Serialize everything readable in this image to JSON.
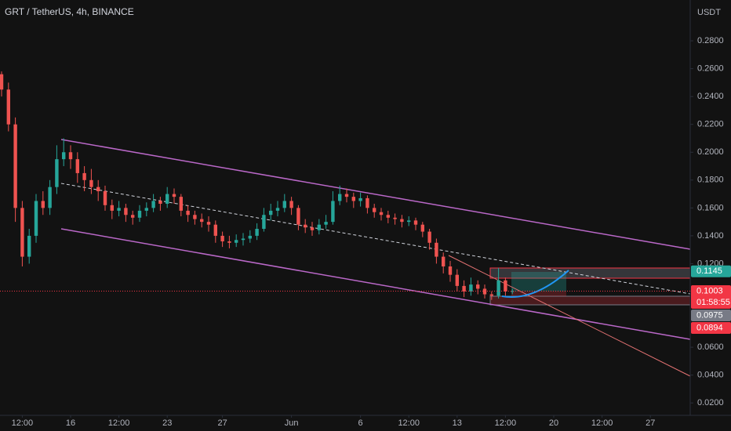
{
  "chart_data": {
    "type": "candlestick",
    "title": "GRT / TetherUS, 4h, BINANCE",
    "axis_unit": "USDT",
    "up_color": "#26a69a",
    "down_color": "#ef5350",
    "xlim": [
      10.886,
      60.886
    ],
    "ylim": [
      0.0111,
      0.3093
    ],
    "xticks": [
      {
        "value": 12.5,
        "label": "12:00"
      },
      16,
      {
        "value": 19.5,
        "label": "12:00"
      },
      23,
      27,
      {
        "value": 32,
        "label": "Jun"
      },
      {
        "value": 37,
        "label": "6"
      },
      {
        "value": 40.5,
        "label": "12:00"
      },
      {
        "value": 44,
        "label": "13"
      },
      {
        "value": 47.5,
        "label": "12:00"
      },
      {
        "value": 51,
        "label": "20"
      },
      {
        "value": 54.5,
        "label": "12:00"
      },
      {
        "value": 58,
        "label": "27"
      }
    ],
    "yticks": [
      {
        "value": 0.02,
        "label": "0.0200"
      },
      {
        "value": 0.04,
        "label": "0.0400"
      },
      {
        "value": 0.06,
        "label": "0.0600"
      },
      {
        "value": 0.12,
        "label": "0.1200"
      },
      {
        "value": 0.14,
        "label": "0.1400"
      },
      {
        "value": 0.16,
        "label": "0.1600"
      },
      {
        "value": 0.18,
        "label": "0.1800"
      },
      {
        "value": 0.2,
        "label": "0.2000"
      },
      {
        "value": 0.22,
        "label": "0.2200"
      },
      {
        "value": 0.24,
        "label": "0.2400"
      },
      {
        "value": 0.26,
        "label": "0.2600"
      },
      {
        "value": 0.28,
        "label": "0.2800"
      }
    ],
    "x": [
      11,
      11.5,
      12,
      12.5,
      13,
      13.5,
      14,
      14.5,
      15,
      15.5,
      16,
      16.5,
      17,
      17.5,
      18,
      18.5,
      19,
      19.5,
      20,
      20.5,
      21,
      21.5,
      22,
      22.5,
      23,
      23.5,
      24,
      24.5,
      25,
      25.5,
      26,
      26.5,
      27,
      27.5,
      28,
      28.5,
      29,
      29.5,
      30,
      30.5,
      31,
      31.5,
      32,
      32.5,
      33,
      33.5,
      34,
      34.5,
      35,
      35.5,
      36,
      36.5,
      37,
      37.5,
      38,
      38.5,
      39,
      39.5,
      40,
      40.5,
      41,
      41.5,
      42,
      42.5,
      43,
      43.5,
      44,
      44.5,
      45,
      45.5,
      46,
      46.5,
      47,
      47.5,
      48
    ],
    "open": [
      0.256,
      0.245,
      0.22,
      0.16,
      0.125,
      0.14,
      0.165,
      0.16,
      0.175,
      0.195,
      0.2,
      0.195,
      0.185,
      0.18,
      0.175,
      0.172,
      0.162,
      0.158,
      0.16,
      0.155,
      0.153,
      0.158,
      0.16,
      0.165,
      0.163,
      0.17,
      0.168,
      0.158,
      0.155,
      0.152,
      0.15,
      0.148,
      0.14,
      0.136,
      0.135,
      0.137,
      0.138,
      0.14,
      0.145,
      0.155,
      0.158,
      0.16,
      0.165,
      0.16,
      0.148,
      0.146,
      0.144,
      0.148,
      0.15,
      0.165,
      0.17,
      0.168,
      0.165,
      0.167,
      0.16,
      0.157,
      0.155,
      0.153,
      0.152,
      0.15,
      0.151,
      0.148,
      0.143,
      0.135,
      0.125,
      0.118,
      0.112,
      0.104,
      0.1,
      0.105,
      0.102,
      0.098,
      0.097,
      0.108,
      0.1
    ],
    "high": [
      0.258,
      0.25,
      0.225,
      0.165,
      0.145,
      0.17,
      0.172,
      0.18,
      0.205,
      0.21,
      0.205,
      0.2,
      0.19,
      0.188,
      0.18,
      0.176,
      0.166,
      0.165,
      0.163,
      0.158,
      0.162,
      0.164,
      0.17,
      0.168,
      0.175,
      0.174,
      0.17,
      0.162,
      0.158,
      0.156,
      0.154,
      0.151,
      0.143,
      0.14,
      0.141,
      0.142,
      0.144,
      0.149,
      0.16,
      0.163,
      0.165,
      0.17,
      0.168,
      0.162,
      0.152,
      0.15,
      0.152,
      0.155,
      0.172,
      0.176,
      0.174,
      0.171,
      0.171,
      0.169,
      0.163,
      0.16,
      0.158,
      0.156,
      0.155,
      0.154,
      0.153,
      0.15,
      0.145,
      0.138,
      0.128,
      0.122,
      0.116,
      0.108,
      0.11,
      0.108,
      0.105,
      0.1,
      0.117,
      0.11,
      0.102
    ],
    "low": [
      0.24,
      0.215,
      0.15,
      0.118,
      0.12,
      0.135,
      0.155,
      0.155,
      0.17,
      0.19,
      0.188,
      0.178,
      0.172,
      0.17,
      0.165,
      0.158,
      0.152,
      0.154,
      0.15,
      0.148,
      0.15,
      0.154,
      0.157,
      0.158,
      0.16,
      0.163,
      0.154,
      0.15,
      0.148,
      0.146,
      0.143,
      0.135,
      0.132,
      0.131,
      0.132,
      0.133,
      0.135,
      0.137,
      0.143,
      0.151,
      0.154,
      0.157,
      0.155,
      0.144,
      0.142,
      0.14,
      0.141,
      0.145,
      0.148,
      0.162,
      0.164,
      0.16,
      0.161,
      0.156,
      0.153,
      0.151,
      0.149,
      0.148,
      0.146,
      0.147,
      0.144,
      0.139,
      0.13,
      0.12,
      0.113,
      0.107,
      0.1,
      0.096,
      0.097,
      0.098,
      0.095,
      0.094,
      0.095,
      0.097,
      0.098
    ],
    "close": [
      0.245,
      0.22,
      0.16,
      0.125,
      0.14,
      0.165,
      0.16,
      0.175,
      0.195,
      0.2,
      0.195,
      0.185,
      0.18,
      0.175,
      0.172,
      0.162,
      0.158,
      0.16,
      0.155,
      0.153,
      0.158,
      0.16,
      0.165,
      0.163,
      0.17,
      0.168,
      0.158,
      0.155,
      0.152,
      0.15,
      0.148,
      0.14,
      0.136,
      0.135,
      0.137,
      0.138,
      0.14,
      0.145,
      0.155,
      0.158,
      0.16,
      0.165,
      0.16,
      0.148,
      0.146,
      0.144,
      0.148,
      0.15,
      0.165,
      0.17,
      0.168,
      0.165,
      0.167,
      0.16,
      0.157,
      0.155,
      0.153,
      0.152,
      0.15,
      0.151,
      0.148,
      0.143,
      0.135,
      0.125,
      0.118,
      0.112,
      0.104,
      0.1,
      0.105,
      0.102,
      0.098,
      0.097,
      0.108,
      0.1,
      0.1003
    ],
    "price_labels": [
      {
        "value": 0.1145,
        "color": "#26a69a"
      },
      {
        "value": 0.1003,
        "color": "#f23645",
        "countdown": "01:58:55"
      },
      {
        "value": 0.0975,
        "color": "#787b86"
      },
      {
        "value": 0.0894,
        "color": "#f23645"
      }
    ]
  }
}
